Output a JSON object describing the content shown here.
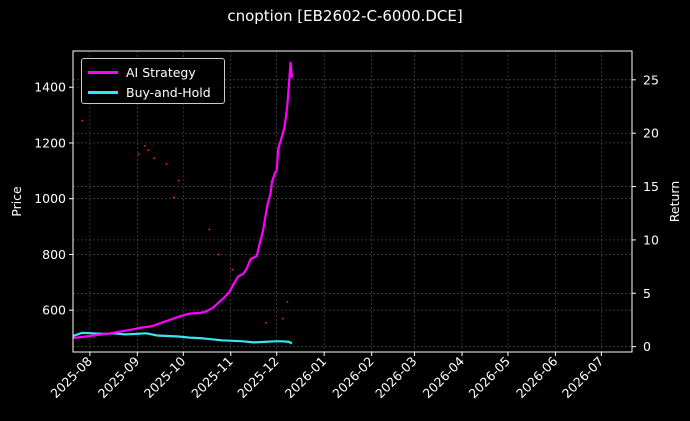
{
  "chart_data": {
    "type": "line",
    "title": "cnoption [EB2602-C-6000.DCE]",
    "xlabel": "",
    "ylabel_left": "Price",
    "ylabel_right": "Return",
    "x_tick_labels": [
      "2025-08",
      "2025-09",
      "2025-10",
      "2025-11",
      "2025-12",
      "2026-01",
      "2026-02",
      "2026-03",
      "2026-04",
      "2026-05",
      "2026-06",
      "2026-07"
    ],
    "x_tick_dates": [
      "2025-08-01",
      "2025-09-01",
      "2025-10-01",
      "2025-11-01",
      "2025-12-01",
      "2026-01-01",
      "2026-02-01",
      "2026-03-01",
      "2026-04-01",
      "2026-05-01",
      "2026-06-01",
      "2026-07-01"
    ],
    "xlim": [
      "2025-07-21",
      "2026-07-21"
    ],
    "y_left_ticks": [
      600,
      800,
      1000,
      1200,
      1400
    ],
    "ylim_left": [
      450,
      1530
    ],
    "y_right_ticks": [
      0,
      5,
      10,
      15,
      20,
      25
    ],
    "ylim_right": [
      -0.5,
      27.7
    ],
    "grid": true,
    "legend_position": "top-left",
    "colors": {
      "background": "#000000",
      "ai": "#ff00ff",
      "bh": "#33e6f0",
      "price": "#ff2020",
      "grid": "#555555"
    },
    "series": [
      {
        "name": "AI Strategy",
        "axis": "right",
        "x": [
          "2025-07-21",
          "2025-07-26",
          "2025-08-01",
          "2025-08-06",
          "2025-08-12",
          "2025-08-18",
          "2025-08-24",
          "2025-08-30",
          "2025-09-04",
          "2025-09-10",
          "2025-09-16",
          "2025-09-20",
          "2025-09-25",
          "2025-09-30",
          "2025-10-05",
          "2025-10-12",
          "2025-10-16",
          "2025-10-20",
          "2025-10-23",
          "2025-10-27",
          "2025-10-31",
          "2025-11-03",
          "2025-11-06",
          "2025-11-09",
          "2025-11-11",
          "2025-11-14",
          "2025-11-18",
          "2025-11-20",
          "2025-11-22",
          "2025-11-24",
          "2025-11-25",
          "2025-11-27",
          "2025-11-28",
          "2025-11-30",
          "2025-12-01",
          "2025-12-02",
          "2025-12-04",
          "2025-12-06",
          "2025-12-07",
          "2025-12-08",
          "2025-12-09",
          "2025-12-10",
          "2025-12-11"
        ],
        "y": [
          0.8,
          0.9,
          1.0,
          1.1,
          1.2,
          1.35,
          1.5,
          1.65,
          1.8,
          1.9,
          2.2,
          2.4,
          2.65,
          2.9,
          3.1,
          3.15,
          3.3,
          3.6,
          4.0,
          4.5,
          5.1,
          5.9,
          6.6,
          6.8,
          7.2,
          8.2,
          8.5,
          9.7,
          10.8,
          12.5,
          13.3,
          14.4,
          15.5,
          16.3,
          16.5,
          18.5,
          19.5,
          20.5,
          21.5,
          22.7,
          24.5,
          26.6,
          25.2
        ]
      },
      {
        "name": "Buy-and-Hold",
        "axis": "right",
        "x": [
          "2025-07-21",
          "2025-07-27",
          "2025-08-03",
          "2025-08-10",
          "2025-08-17",
          "2025-08-24",
          "2025-08-31",
          "2025-09-07",
          "2025-09-14",
          "2025-09-21",
          "2025-09-28",
          "2025-10-05",
          "2025-10-12",
          "2025-10-19",
          "2025-10-26",
          "2025-11-02",
          "2025-11-09",
          "2025-11-16",
          "2025-11-23",
          "2025-11-30",
          "2025-12-05",
          "2025-12-09",
          "2025-12-11"
        ],
        "y": [
          1.0,
          1.3,
          1.25,
          1.2,
          1.25,
          1.15,
          1.2,
          1.25,
          1.05,
          1.0,
          0.95,
          0.85,
          0.8,
          0.7,
          0.6,
          0.55,
          0.5,
          0.4,
          0.45,
          0.5,
          0.5,
          0.45,
          0.3
        ]
      },
      {
        "name": "Price",
        "axis": "left",
        "x": [
          "2025-07-27",
          "2025-09-02",
          "2025-09-06",
          "2025-09-08",
          "2025-09-12",
          "2025-09-20",
          "2025-09-25",
          "2025-09-28",
          "2025-10-18",
          "2025-10-24",
          "2025-11-02",
          "2025-11-24",
          "2025-12-05",
          "2025-12-08"
        ],
        "y": [
          1280,
          1160,
          1190,
          1175,
          1145,
          1125,
          1005,
          1065,
          890,
          800,
          745,
          555,
          570,
          630
        ]
      }
    ]
  }
}
